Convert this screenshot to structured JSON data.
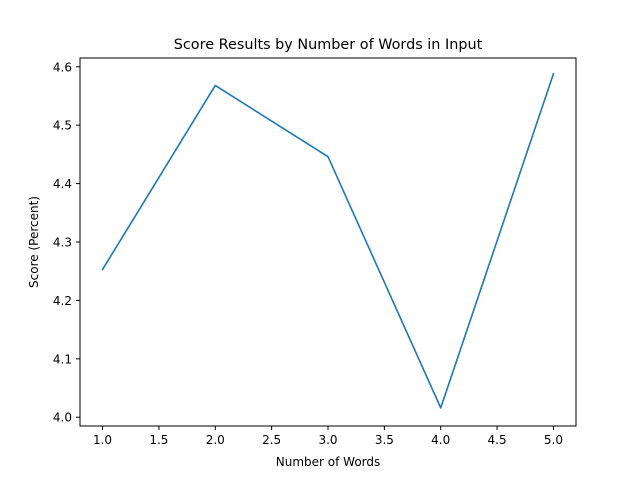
{
  "chart_data": {
    "type": "line",
    "title": "Score Results by Number of Words in Input",
    "xlabel": "Number of Words",
    "ylabel": "Score (Percent)",
    "xlim": [
      0.8,
      5.2
    ],
    "ylim": [
      3.985,
      4.615
    ],
    "xticks": [
      1.0,
      1.5,
      2.0,
      2.5,
      3.0,
      3.5,
      4.0,
      4.5,
      5.0
    ],
    "xtick_labels": [
      "1.0",
      "1.5",
      "2.0",
      "2.5",
      "3.0",
      "3.5",
      "4.0",
      "4.5",
      "5.0"
    ],
    "yticks": [
      4.0,
      4.1,
      4.2,
      4.3,
      4.4,
      4.5,
      4.6
    ],
    "ytick_labels": [
      "4.0",
      "4.1",
      "4.2",
      "4.3",
      "4.4",
      "4.5",
      "4.6"
    ],
    "grid": false,
    "series": [
      {
        "color": "#1f77b4",
        "x": [
          1,
          2,
          3,
          4,
          5
        ],
        "y": [
          4.253,
          4.568,
          4.446,
          4.016,
          4.588
        ]
      }
    ]
  }
}
